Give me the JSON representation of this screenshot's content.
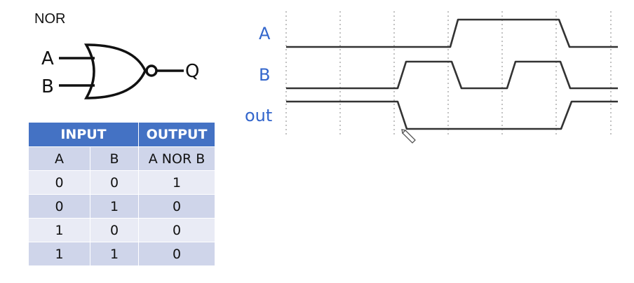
{
  "gate": {
    "title": "NOR",
    "input_a": "A",
    "input_b": "B",
    "output": "Q"
  },
  "truth_table": {
    "group_headers": [
      "INPUT",
      "OUTPUT"
    ],
    "columns": [
      "A",
      "B",
      "A NOR B"
    ],
    "rows": [
      [
        "0",
        "0",
        "1"
      ],
      [
        "0",
        "1",
        "0"
      ],
      [
        "1",
        "0",
        "0"
      ],
      [
        "1",
        "1",
        "0"
      ]
    ]
  },
  "timing": {
    "signals": [
      "A",
      "B",
      "out"
    ],
    "colors": {
      "label": "#3366cc",
      "trace": "#333333",
      "grid": "#999999",
      "header": "#4472c4"
    }
  }
}
